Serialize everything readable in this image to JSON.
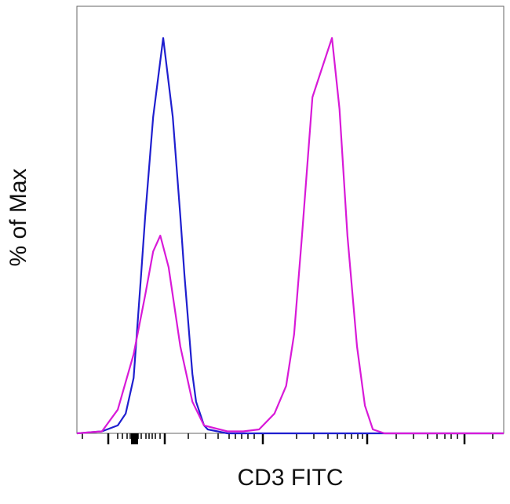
{
  "chart_data": {
    "type": "line",
    "title": "",
    "xlabel": "CD3 FITC",
    "ylabel": "% of Max",
    "x_scale": "biexponential (unlabeled ticks)",
    "ylim": [
      0,
      108
    ],
    "grid": false,
    "legend": "none",
    "series": [
      {
        "color": "#1f1fcf",
        "x": [
          0,
          60,
          98,
          117,
          136,
          154,
          164,
          183,
          207,
          230,
          248,
          258,
          277,
          286,
          305,
          314,
          361,
          1024
        ],
        "y": [
          0,
          0.5,
          2,
          5,
          14,
          40,
          55,
          80,
          100,
          80,
          55,
          40,
          15,
          8,
          2,
          1,
          0,
          0
        ]
      },
      {
        "color": "#d81ad8",
        "x": [
          0,
          60,
          98,
          136,
          164,
          183,
          200,
          220,
          248,
          277,
          305,
          361,
          399,
          437,
          474,
          502,
          521,
          540,
          565,
          587,
          612,
          630,
          649,
          672,
          691,
          710,
          738,
          1024
        ],
        "y": [
          0,
          0.5,
          6,
          20,
          35,
          46,
          50,
          42,
          22,
          8,
          2,
          0.5,
          0.5,
          1,
          5,
          12,
          25,
          50,
          85,
          92,
          100,
          82,
          50,
          22,
          7,
          1,
          0,
          0
        ]
      }
    ]
  }
}
